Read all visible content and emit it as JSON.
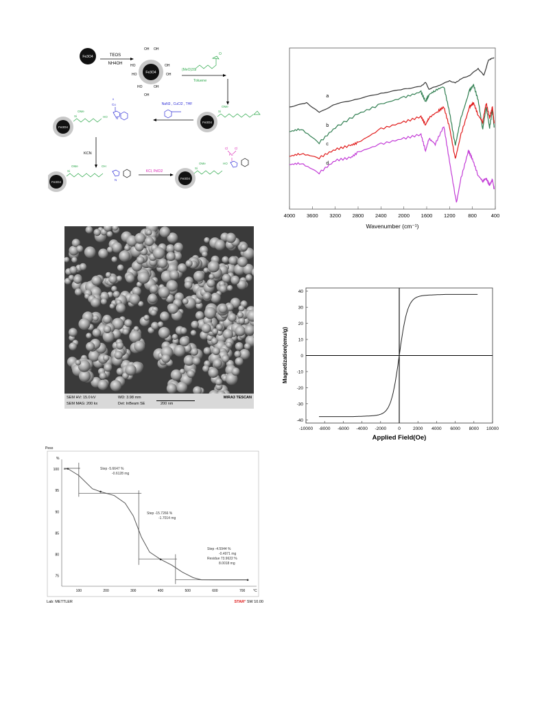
{
  "scheme": {
    "core": "Fe3O4",
    "step1_reagents": [
      "TEOS",
      "NH4OH"
    ],
    "step2_reagent_top": "(MeO)3Si",
    "step2_reagent_bottom": "Toluene",
    "step3_reagents": "NaN3 , CuCl2 , THF",
    "step4_reagent": "KCN",
    "step5_reagent": "KCl, PdCl2",
    "labels": {
      "oh": "OH",
      "ho": "HO",
      "ome": "OMe",
      "cu": "Cu",
      "cl": "Cl",
      "pd": "Pd",
      "n": "N",
      "si": "Si",
      "ii": "II",
      "o": "O"
    }
  },
  "ftir": {
    "x_label": "Wavenumber (cm⁻¹)",
    "x_ticks": [
      "4000",
      "3600",
      "3200",
      "2800",
      "2400",
      "2000",
      "1600",
      "1200",
      "800",
      "400"
    ],
    "x_range": [
      4000,
      400
    ],
    "series": [
      {
        "label": "a",
        "color": "#333333"
      },
      {
        "label": "b",
        "color": "#2e7d4f"
      },
      {
        "label": "c",
        "color": "#e01818"
      },
      {
        "label": "d",
        "color": "#c23ad6"
      }
    ]
  },
  "sem": {
    "hv": "SEM HV: 15.0 kV",
    "wd": "WD: 3.98 mm",
    "mag": "SEM MAG: 200 kx",
    "det": "Det: InBeam SE",
    "scale": "200 nm",
    "brand": "MIRA3 TESCAN"
  },
  "vsm": {
    "x_label": "Applied Field(Oe)",
    "y_label": "Magnetization(emu/g)",
    "x_ticks": [
      "-10000",
      "-8000",
      "-6000",
      "-4000",
      "-2000",
      "0",
      "2000",
      "4000",
      "6000",
      "8000",
      "10000"
    ],
    "y_ticks": [
      "40",
      "30",
      "20",
      "10",
      "0",
      "-10",
      "-20",
      "-30",
      "-40"
    ],
    "x_range": [
      -10000,
      10000
    ],
    "y_range": [
      -42,
      42
    ],
    "saturation": 37
  },
  "tga": {
    "corner_label": "Peso",
    "y_unit": "%",
    "x_unit": "°C",
    "y_ticks": [
      "100",
      "95",
      "90",
      "85",
      "80",
      "75"
    ],
    "x_ticks": [
      "100",
      "200",
      "300",
      "400",
      "500",
      "600",
      "700"
    ],
    "steps": [
      {
        "step": "Step    -5.6647 %",
        "mass": "-0.6128 mg"
      },
      {
        "step": "Step    -15.7266 %",
        "mass": "-1.7014 mg"
      },
      {
        "step": "Step    -4.5944 %",
        "mass": "-0.4971 mg",
        "residue": "Residue  73.9622 %",
        "residue_mass": "8.0018 mg"
      }
    ],
    "footer_left": "Lab: METTLER",
    "footer_right_brand": "STAR",
    "footer_right_sup": "e",
    "footer_right_rest": " SW 10.00"
  }
}
